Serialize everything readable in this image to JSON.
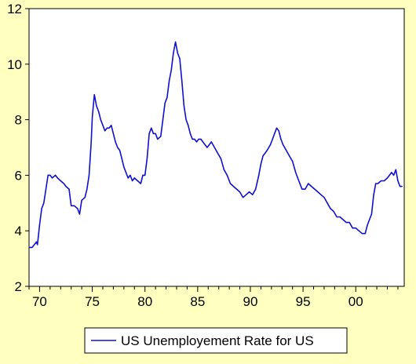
{
  "chart_data": {
    "type": "line",
    "title": "",
    "xlabel": "",
    "ylabel": "",
    "xlim": [
      1969.0,
      2004.6
    ],
    "ylim": [
      2,
      12
    ],
    "grid": false,
    "legend_position": "bottom",
    "x_ticks": [
      {
        "value": 1970,
        "label": "70"
      },
      {
        "value": 1975,
        "label": "75"
      },
      {
        "value": 1980,
        "label": "80"
      },
      {
        "value": 1985,
        "label": "85"
      },
      {
        "value": 1990,
        "label": "90"
      },
      {
        "value": 1995,
        "label": "95"
      },
      {
        "value": 2000,
        "label": "00"
      }
    ],
    "y_ticks": [
      {
        "value": 2,
        "label": "2"
      },
      {
        "value": 4,
        "label": "4"
      },
      {
        "value": 6,
        "label": "6"
      },
      {
        "value": 8,
        "label": "8"
      },
      {
        "value": 10,
        "label": "10"
      },
      {
        "value": 12,
        "label": "12"
      }
    ],
    "series": [
      {
        "name": "US Unemployement Rate for US",
        "color": "#1010d0",
        "x": [
          1969.0,
          1969.3,
          1969.5,
          1969.7,
          1969.8,
          1970.0,
          1970.2,
          1970.4,
          1970.6,
          1970.8,
          1971.0,
          1971.2,
          1971.5,
          1971.7,
          1972.0,
          1972.3,
          1972.5,
          1972.8,
          1973.0,
          1973.3,
          1973.6,
          1973.8,
          1974.0,
          1974.3,
          1974.5,
          1974.7,
          1974.9,
          1975.0,
          1975.2,
          1975.4,
          1975.6,
          1975.8,
          1976.0,
          1976.2,
          1976.4,
          1976.6,
          1976.8,
          1977.0,
          1977.2,
          1977.4,
          1977.6,
          1977.8,
          1978.0,
          1978.2,
          1978.4,
          1978.6,
          1978.8,
          1979.0,
          1979.3,
          1979.6,
          1979.8,
          1980.0,
          1980.2,
          1980.4,
          1980.6,
          1980.8,
          1981.0,
          1981.2,
          1981.5,
          1981.7,
          1981.9,
          1982.1,
          1982.3,
          1982.5,
          1982.7,
          1982.9,
          1983.1,
          1983.3,
          1983.5,
          1983.7,
          1983.9,
          1984.1,
          1984.3,
          1984.5,
          1984.7,
          1984.9,
          1985.1,
          1985.3,
          1985.5,
          1985.7,
          1985.9,
          1986.1,
          1986.3,
          1986.6,
          1986.9,
          1987.2,
          1987.5,
          1987.8,
          1988.1,
          1988.4,
          1988.7,
          1989.0,
          1989.3,
          1989.6,
          1989.9,
          1990.2,
          1990.5,
          1990.8,
          1991.0,
          1991.2,
          1991.4,
          1991.6,
          1991.9,
          1992.1,
          1992.3,
          1992.5,
          1992.7,
          1992.9,
          1993.1,
          1993.4,
          1993.7,
          1994.0,
          1994.3,
          1994.6,
          1994.9,
          1995.2,
          1995.5,
          1995.8,
          1996.1,
          1996.4,
          1996.7,
          1997.0,
          1997.3,
          1997.6,
          1997.9,
          1998.2,
          1998.5,
          1998.8,
          1999.1,
          1999.4,
          1999.7,
          2000.0,
          2000.3,
          2000.6,
          2000.9,
          2001.1,
          2001.3,
          2001.5,
          2001.7,
          2001.9,
          2002.1,
          2002.4,
          2002.7,
          2003.0,
          2003.2,
          2003.4,
          2003.6,
          2003.8,
          2004.0,
          2004.2,
          2004.4
        ],
        "values": [
          3.4,
          3.4,
          3.5,
          3.6,
          3.5,
          4.2,
          4.8,
          5.0,
          5.5,
          6.0,
          6.0,
          5.9,
          6.0,
          5.9,
          5.8,
          5.7,
          5.6,
          5.5,
          4.9,
          4.9,
          4.8,
          4.6,
          5.1,
          5.2,
          5.5,
          6.0,
          7.2,
          8.1,
          8.9,
          8.5,
          8.3,
          8.0,
          7.8,
          7.6,
          7.7,
          7.7,
          7.8,
          7.5,
          7.2,
          7.0,
          6.9,
          6.6,
          6.3,
          6.1,
          5.9,
          6.0,
          5.8,
          5.9,
          5.8,
          5.7,
          6.0,
          6.0,
          6.6,
          7.5,
          7.7,
          7.5,
          7.5,
          7.3,
          7.4,
          8.0,
          8.6,
          8.8,
          9.4,
          9.8,
          10.4,
          10.8,
          10.4,
          10.2,
          9.4,
          8.5,
          8.0,
          7.8,
          7.5,
          7.3,
          7.3,
          7.2,
          7.3,
          7.3,
          7.2,
          7.1,
          7.0,
          7.1,
          7.2,
          7.0,
          6.8,
          6.6,
          6.2,
          6.0,
          5.7,
          5.6,
          5.5,
          5.4,
          5.2,
          5.3,
          5.4,
          5.3,
          5.5,
          6.0,
          6.4,
          6.7,
          6.8,
          6.9,
          7.1,
          7.3,
          7.5,
          7.7,
          7.6,
          7.3,
          7.1,
          6.9,
          6.7,
          6.5,
          6.1,
          5.8,
          5.5,
          5.5,
          5.7,
          5.6,
          5.5,
          5.4,
          5.3,
          5.2,
          5.0,
          4.8,
          4.7,
          4.5,
          4.5,
          4.4,
          4.3,
          4.3,
          4.1,
          4.1,
          4.0,
          3.9,
          3.9,
          4.2,
          4.4,
          4.6,
          5.3,
          5.7,
          5.7,
          5.8,
          5.8,
          5.9,
          6.0,
          6.1,
          6.0,
          6.2,
          5.8,
          5.6,
          5.6
        ]
      }
    ]
  }
}
